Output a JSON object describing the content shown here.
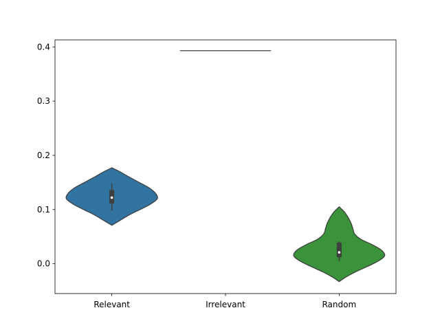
{
  "chart_data": {
    "type": "violin",
    "title": "",
    "xlabel": "",
    "ylabel": "",
    "categories": [
      "Relevant",
      "Irrelevant",
      "Random"
    ],
    "ylim": [
      -0.055,
      0.413
    ],
    "yticks": [
      0.0,
      0.1,
      0.2,
      0.3,
      0.4
    ],
    "ytick_labels": [
      "0.0",
      "0.1",
      "0.2",
      "0.3",
      "0.4"
    ],
    "grid": false,
    "legend": "none",
    "series": [
      {
        "category": "Relevant",
        "color": "#3274a1",
        "density": [
          [
            0.071,
            0.0
          ],
          [
            0.08,
            0.18
          ],
          [
            0.09,
            0.38
          ],
          [
            0.1,
            0.62
          ],
          [
            0.11,
            0.85
          ],
          [
            0.12,
            1.0
          ],
          [
            0.13,
            0.96
          ],
          [
            0.14,
            0.82
          ],
          [
            0.15,
            0.6
          ],
          [
            0.16,
            0.38
          ],
          [
            0.17,
            0.17
          ],
          [
            0.177,
            0.0
          ]
        ],
        "box": {
          "q1": 0.111,
          "median": 0.122,
          "q3": 0.136,
          "whisker_low": 0.098,
          "whisker_high": 0.148
        }
      },
      {
        "category": "Irrelevant",
        "color": "#e1812c",
        "density": [],
        "flat_value": 0.393,
        "box": null
      },
      {
        "category": "Random",
        "color": "#3a923a",
        "density": [
          [
            -0.033,
            0.0
          ],
          [
            -0.025,
            0.14
          ],
          [
            -0.015,
            0.36
          ],
          [
            -0.005,
            0.62
          ],
          [
            0.005,
            0.86
          ],
          [
            0.015,
            1.0
          ],
          [
            0.025,
            0.93
          ],
          [
            0.035,
            0.73
          ],
          [
            0.045,
            0.48
          ],
          [
            0.055,
            0.34
          ],
          [
            0.065,
            0.3
          ],
          [
            0.075,
            0.26
          ],
          [
            0.085,
            0.2
          ],
          [
            0.095,
            0.12
          ],
          [
            0.105,
            0.0
          ]
        ],
        "box": {
          "q1": 0.012,
          "median": 0.021,
          "q3": 0.039,
          "whisker_low": 0.005,
          "whisker_high": 0.041
        }
      }
    ]
  }
}
